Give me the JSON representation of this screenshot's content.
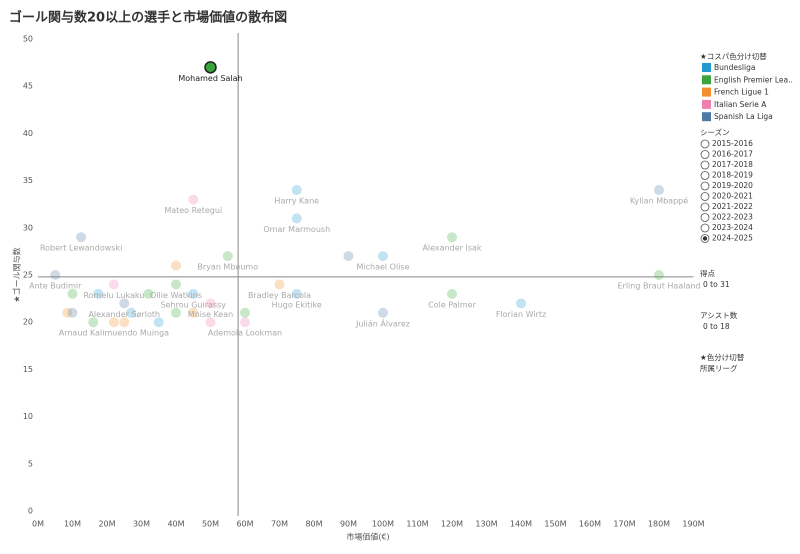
{
  "chart_data": {
    "type": "scatter",
    "title": "ゴール関与数20以上の選手と市場価値の散布図",
    "x_label": "市場価値(€)",
    "y_label": "★ゴール関与数",
    "xlim": [
      0,
      190000000
    ],
    "ylim": [
      0,
      50
    ],
    "xticks": [
      {
        "value": 0,
        "label": "0M"
      },
      {
        "value": 10000000,
        "label": "10M"
      },
      {
        "value": 20000000,
        "label": "20M"
      },
      {
        "value": 30000000,
        "label": "30M"
      },
      {
        "value": 40000000,
        "label": "40M"
      },
      {
        "value": 50000000,
        "label": "50M"
      },
      {
        "value": 60000000,
        "label": "60M"
      },
      {
        "value": 70000000,
        "label": "70M"
      },
      {
        "value": 80000000,
        "label": "80M"
      },
      {
        "value": 90000000,
        "label": "90M"
      },
      {
        "value": 100000000,
        "label": "100M"
      },
      {
        "value": 110000000,
        "label": "110M"
      },
      {
        "value": 120000000,
        "label": "120M"
      },
      {
        "value": 130000000,
        "label": "130M"
      },
      {
        "value": 140000000,
        "label": "140M"
      },
      {
        "value": 150000000,
        "label": "150M"
      },
      {
        "value": 160000000,
        "label": "160M"
      },
      {
        "value": 170000000,
        "label": "170M"
      },
      {
        "value": 180000000,
        "label": "180M"
      },
      {
        "value": 190000000,
        "label": "190M"
      }
    ],
    "yticks": [
      0,
      5,
      10,
      15,
      20,
      25,
      30,
      35,
      40,
      45,
      50
    ],
    "grid": false,
    "reference_lines": {
      "x": 58000000,
      "y": 24.8
    },
    "selected": {
      "series": 1,
      "index": 0
    },
    "legend_title": "★コスパ色分け切替",
    "series": [
      {
        "name": "Bundesliga",
        "color": "#1f9bcf",
        "x": [
          75000000,
          75000000,
          100000000,
          17500000,
          45000000,
          75000000,
          140000000,
          27000000,
          35000000
        ],
        "values": [
          34,
          31,
          27,
          23,
          23,
          23,
          22,
          21,
          20
        ],
        "labels": [
          "Harry Kane",
          "Omar Marmoush",
          "Michael Olise",
          null,
          "Sehrou Guirassy",
          "Hugo Ekitike",
          "Florian Wirtz",
          null,
          null
        ]
      },
      {
        "name": "English Premier Lea..",
        "color": "#3aa53a",
        "x": [
          50000000,
          120000000,
          55000000,
          180000000,
          40000000,
          10000000,
          32000000,
          120000000,
          40000000,
          60000000,
          16000000
        ],
        "values": [
          47,
          29,
          27,
          25,
          24,
          23,
          23,
          23,
          21,
          21,
          20
        ],
        "labels": [
          "Mohamed Salah",
          "Alexander Isak",
          "Bryan Mbeumo",
          "Erling Braut Haaland",
          "Ollie Watkins",
          null,
          null,
          "Cole Palmer",
          null,
          null,
          null
        ]
      },
      {
        "name": "French Ligue 1",
        "color": "#f28e2b",
        "x": [
          40000000,
          70000000,
          8500000,
          45000000,
          22000000,
          25000000
        ],
        "values": [
          26,
          24,
          21,
          21,
          20,
          20
        ],
        "labels": [
          null,
          "Bradley Barcola",
          null,
          null,
          "Arnaud Kalimuendo Muinga",
          null
        ]
      },
      {
        "name": "Italian Serie A",
        "color": "#f07fb0",
        "x": [
          45000000,
          22000000,
          50000000,
          50000000,
          60000000
        ],
        "values": [
          33,
          24,
          22,
          20,
          20
        ],
        "labels": [
          "Mateo Retegui",
          "Romelu Lukaku",
          "Moise Kean",
          null,
          "Ademola Lookman"
        ]
      },
      {
        "name": "Spanish La Liga",
        "color": "#4e79a7",
        "x": [
          180000000,
          12500000,
          90000000,
          5000000,
          25000000,
          10000000,
          100000000
        ],
        "values": [
          34,
          29,
          27,
          25,
          22,
          21,
          21
        ],
        "labels": [
          "Kylian Mbappé",
          "Robert Lewandowski",
          null,
          "Ante Budimir",
          "Alexander Sørloth",
          null,
          "Julián Álvarez"
        ]
      }
    ]
  },
  "filters": {
    "season": {
      "title": "シーズン",
      "options": [
        "2015-2016",
        "2016-2017",
        "2017-2018",
        "2018-2019",
        "2019-2020",
        "2020-2021",
        "2021-2022",
        "2022-2023",
        "2023-2024",
        "2024-2025"
      ],
      "selected": 9
    },
    "goals": {
      "title": "得点",
      "range": "0 to 31"
    },
    "assists": {
      "title": "アシスト数",
      "range": "0 to 18"
    },
    "color_by": {
      "title": "★色分け切替",
      "value": "所属リーグ"
    }
  }
}
